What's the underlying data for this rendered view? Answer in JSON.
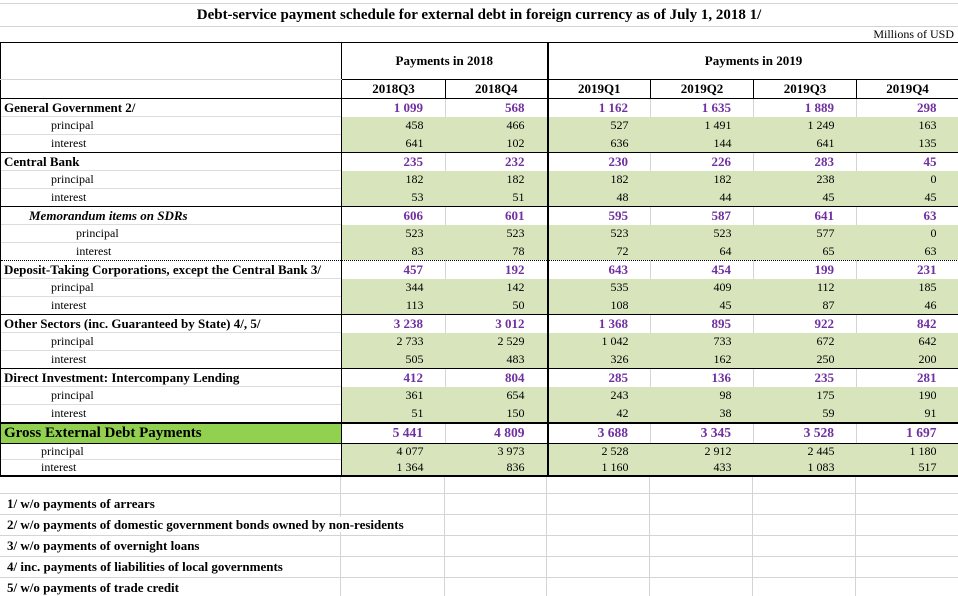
{
  "title": "Debt-service payment schedule for external debt in foreign currency as of July 1, 2018 1/",
  "units": "Millions of USD",
  "header": {
    "group_2018": "Payments in 2018",
    "group_2019": "Payments in 2019",
    "quarters": [
      "2018Q3",
      "2018Q4",
      "2019Q1",
      "2019Q2",
      "2019Q3",
      "2019Q4"
    ]
  },
  "row_labels": {
    "principal": "principal",
    "interest": "interest"
  },
  "sections": [
    {
      "label": "General Government 2/",
      "total": [
        "1 099",
        "568",
        "1 162",
        "1 635",
        "1 889",
        "298"
      ],
      "principal": [
        "458",
        "466",
        "527",
        "1 491",
        "1 249",
        "163"
      ],
      "interest": [
        "641",
        "102",
        "636",
        "144",
        "641",
        "135"
      ]
    },
    {
      "label": "Central Bank",
      "total": [
        "235",
        "232",
        "230",
        "226",
        "283",
        "45"
      ],
      "principal": [
        "182",
        "182",
        "182",
        "182",
        "238",
        "0"
      ],
      "interest": [
        "53",
        "51",
        "48",
        "44",
        "45",
        "45"
      ]
    },
    {
      "label": "Memorandum items on SDRs",
      "italic": true,
      "deep_indent": true,
      "total": [
        "606",
        "601",
        "595",
        "587",
        "641",
        "63"
      ],
      "principal": [
        "523",
        "523",
        "523",
        "523",
        "577",
        "0"
      ],
      "interest": [
        "83",
        "78",
        "72",
        "64",
        "65",
        "63"
      ]
    },
    {
      "label": "Deposit-Taking Corporations, except the Central Bank 3/",
      "divider_top": "dotted",
      "total": [
        "457",
        "192",
        "643",
        "454",
        "199",
        "231"
      ],
      "principal": [
        "344",
        "142",
        "535",
        "409",
        "112",
        "185"
      ],
      "interest": [
        "113",
        "50",
        "108",
        "45",
        "87",
        "46"
      ]
    },
    {
      "label": "Other Sectors (inc. Guaranteed by State) 4/, 5/",
      "total": [
        "3 238",
        "3 012",
        "1 368",
        "895",
        "922",
        "842"
      ],
      "principal": [
        "2 733",
        "2 529",
        "1 042",
        "733",
        "672",
        "642"
      ],
      "interest": [
        "505",
        "483",
        "326",
        "162",
        "250",
        "200"
      ]
    },
    {
      "label": "Direct Investment: Intercompany Lending",
      "total": [
        "412",
        "804",
        "285",
        "136",
        "235",
        "281"
      ],
      "principal": [
        "361",
        "654",
        "243",
        "98",
        "175",
        "190"
      ],
      "interest": [
        "51",
        "150",
        "42",
        "38",
        "59",
        "91"
      ]
    }
  ],
  "gross": {
    "label": "Gross External Debt Payments",
    "total": [
      "5 441",
      "4 809",
      "3 688",
      "3 345",
      "3 528",
      "1 697"
    ],
    "principal": [
      "4 077",
      "3 973",
      "2 528",
      "2 912",
      "2 445",
      "1 180"
    ],
    "interest": [
      "1 364",
      "836",
      "1 160",
      "433",
      "1 083",
      "517"
    ]
  },
  "footnotes": [
    "1/ w/o payments of arrears",
    "2/ w/o payments of domestic government bonds owned by non-residents",
    "3/ w/o payments of overnight loans",
    "4/ inc. payments of liabilities of local governments",
    "5/ w/o payments of trade credit"
  ],
  "colors": {
    "value_purple": "#7030A0",
    "data_green_fill": "#D7E4BC",
    "gross_green": "#92D050"
  }
}
